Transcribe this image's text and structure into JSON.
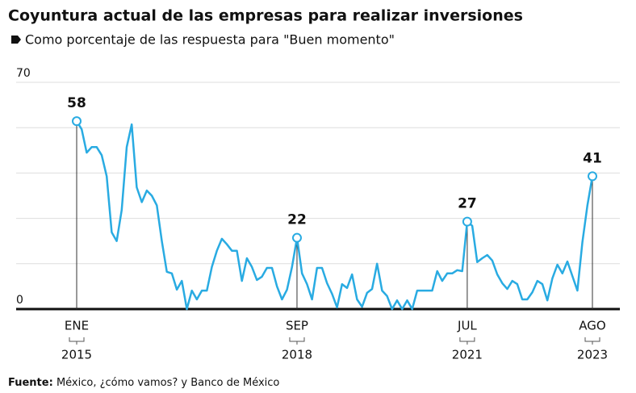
{
  "chart_data": {
    "type": "line",
    "title": "Coyuntura actual de las empresas para realizar inversiones",
    "subtitle": "Como porcentaje de las respuesta para \"Buen momento\"",
    "source": {
      "label": "Fuente:",
      "text": "México, ¿cómo vamos? y Banco de México"
    },
    "color": "#29abe2",
    "x": [
      "2015-01",
      "2015-02",
      "2015-03",
      "2015-04",
      "2015-05",
      "2015-06",
      "2015-07",
      "2015-08",
      "2015-09",
      "2015-10",
      "2015-11",
      "2015-12",
      "2016-01",
      "2016-02",
      "2016-03",
      "2016-04",
      "2016-05",
      "2016-06",
      "2016-07",
      "2016-08",
      "2016-09",
      "2016-10",
      "2016-11",
      "2016-12",
      "2017-01",
      "2017-02",
      "2017-03",
      "2017-04",
      "2017-05",
      "2017-06",
      "2017-07",
      "2017-08",
      "2017-09",
      "2017-10",
      "2017-11",
      "2017-12",
      "2018-01",
      "2018-02",
      "2018-03",
      "2018-04",
      "2018-05",
      "2018-06",
      "2018-07",
      "2018-08",
      "2018-09",
      "2018-10",
      "2018-11",
      "2018-12",
      "2019-01",
      "2019-02",
      "2019-03",
      "2019-04",
      "2019-05",
      "2019-06",
      "2019-07",
      "2019-08",
      "2019-09",
      "2019-10",
      "2019-11",
      "2019-12",
      "2020-01",
      "2020-02",
      "2020-03",
      "2020-04",
      "2020-05",
      "2020-06",
      "2020-07",
      "2020-08",
      "2020-09",
      "2020-10",
      "2020-11",
      "2020-12",
      "2021-01",
      "2021-02",
      "2021-03",
      "2021-04",
      "2021-05",
      "2021-06",
      "2021-07",
      "2021-08",
      "2021-09",
      "2021-10",
      "2021-11",
      "2021-12",
      "2022-01",
      "2022-02",
      "2022-03",
      "2022-04",
      "2022-05",
      "2022-06",
      "2022-07",
      "2022-08",
      "2022-09",
      "2022-10",
      "2022-11",
      "2022-12",
      "2023-01",
      "2023-02",
      "2023-03",
      "2023-04",
      "2023-05",
      "2023-06",
      "2023-07",
      "2023-08"
    ],
    "values": [
      58,
      55.5,
      48.3,
      50,
      50,
      47.5,
      41,
      23.7,
      21,
      30.6,
      50,
      57,
      37.6,
      33,
      36.6,
      35,
      32,
      21,
      11.5,
      11,
      6,
      8.7,
      0,
      5.7,
      3,
      5.7,
      5.7,
      13,
      18,
      21.7,
      20,
      18,
      18,
      8.7,
      15.7,
      13,
      9,
      10,
      12.7,
      12.7,
      7,
      3,
      6,
      13,
      22,
      11,
      7.7,
      3,
      12.7,
      12.7,
      8,
      4.7,
      0.5,
      7.7,
      6.5,
      10.7,
      3,
      0.7,
      5,
      6.2,
      14,
      5.7,
      4,
      0,
      2.7,
      0,
      2.7,
      0,
      5.7,
      5.7,
      5.7,
      5.7,
      11.7,
      8.7,
      11,
      11,
      12,
      11.7,
      27,
      25.7,
      14.5,
      15.7,
      16.7,
      15,
      10.7,
      8,
      6.2,
      8.7,
      7.7,
      3,
      3,
      5.2,
      8.7,
      7.7,
      2.7,
      9.5,
      13.7,
      11,
      14.7,
      10.2,
      5.7,
      20.7,
      32,
      41
    ],
    "xlim": [
      "2015-01",
      "2023-08"
    ],
    "xticks": [
      {
        "value": "2015-01",
        "label": "ENE",
        "year": "2015"
      },
      {
        "value": "2018-09",
        "label": "SEP",
        "year": "2018"
      },
      {
        "value": "2021-07",
        "label": "JUL",
        "year": "2021"
      },
      {
        "value": "2023-08",
        "label": "AGO",
        "year": "2023"
      }
    ],
    "highlight_x": [
      "2015-01",
      "2018-09",
      "2021-07",
      "2023-08"
    ],
    "ylim": [
      0,
      70
    ],
    "yticks": [
      0,
      70
    ],
    "minor_yticks": [
      14,
      28,
      42,
      56
    ],
    "grid": true
  }
}
